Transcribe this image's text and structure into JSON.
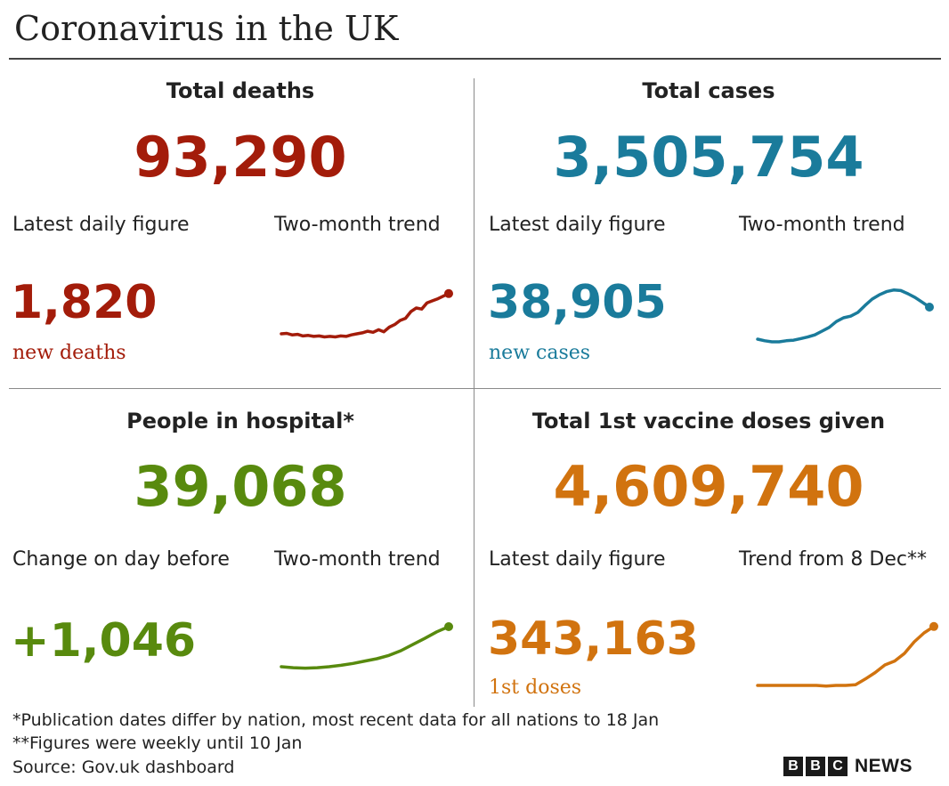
{
  "title": "Coronavirus in the UK",
  "colors": {
    "deaths": "#a31c0a",
    "cases": "#1a7b9b",
    "hospital": "#588a0e",
    "vaccine": "#d1730f"
  },
  "panels": {
    "deaths": {
      "heading": "Total deaths",
      "total": "93,290",
      "left_label": "Latest daily figure",
      "right_label": "Two-month trend",
      "value": "1,820",
      "note": "new deaths"
    },
    "cases": {
      "heading": "Total cases",
      "total": "3,505,754",
      "left_label": "Latest daily figure",
      "right_label": "Two-month trend",
      "value": "38,905",
      "note": "new cases"
    },
    "hospital": {
      "heading": "People in hospital*",
      "total": "39,068",
      "left_label": "Change on day before",
      "right_label": "Two-month trend",
      "value": "+1,046",
      "note": ""
    },
    "vaccine": {
      "heading": "Total 1st vaccine doses given",
      "total": "4,609,740",
      "left_label": "Latest daily figure",
      "right_label": "Trend from 8 Dec**",
      "value": "343,163",
      "note": "1st doses"
    }
  },
  "chart_data": [
    {
      "type": "line",
      "name": "deaths-trend",
      "y": [
        0.12,
        0.13,
        0.1,
        0.11,
        0.08,
        0.09,
        0.07,
        0.08,
        0.06,
        0.07,
        0.06,
        0.08,
        0.07,
        0.1,
        0.12,
        0.14,
        0.17,
        0.15,
        0.2,
        0.16,
        0.25,
        0.3,
        0.38,
        0.42,
        0.55,
        0.62,
        0.6,
        0.72,
        0.76,
        0.8,
        0.85,
        0.9
      ]
    },
    {
      "type": "line",
      "name": "cases-trend",
      "y": [
        0.05,
        0.02,
        0.0,
        0.0,
        0.02,
        0.03,
        0.06,
        0.09,
        0.13,
        0.2,
        0.27,
        0.38,
        0.45,
        0.48,
        0.55,
        0.68,
        0.8,
        0.88,
        0.94,
        0.97,
        0.96,
        0.9,
        0.83,
        0.74,
        0.65
      ]
    },
    {
      "type": "line",
      "name": "hospital-trend",
      "y": [
        0.0,
        -0.02,
        -0.03,
        -0.02,
        0.0,
        0.03,
        0.07,
        0.12,
        0.17,
        0.24,
        0.34,
        0.47,
        0.6,
        0.74,
        0.85
      ]
    },
    {
      "type": "line",
      "name": "vaccine-trend",
      "y": [
        0.0,
        0.0,
        0.0,
        0.0,
        0.0,
        0.0,
        0.0,
        -0.01,
        0.0,
        0.0,
        0.01,
        0.1,
        0.2,
        0.32,
        0.38,
        0.5,
        0.68,
        0.82,
        0.92
      ]
    }
  ],
  "footer": {
    "line1": "*Publication dates differ by nation, most recent data for all nations to 18 Jan",
    "line2": "**Figures were weekly until 10 Jan",
    "line3": "Source: Gov.uk dashboard"
  },
  "logo": {
    "letters": [
      "B",
      "B",
      "C"
    ],
    "word": "NEWS"
  }
}
